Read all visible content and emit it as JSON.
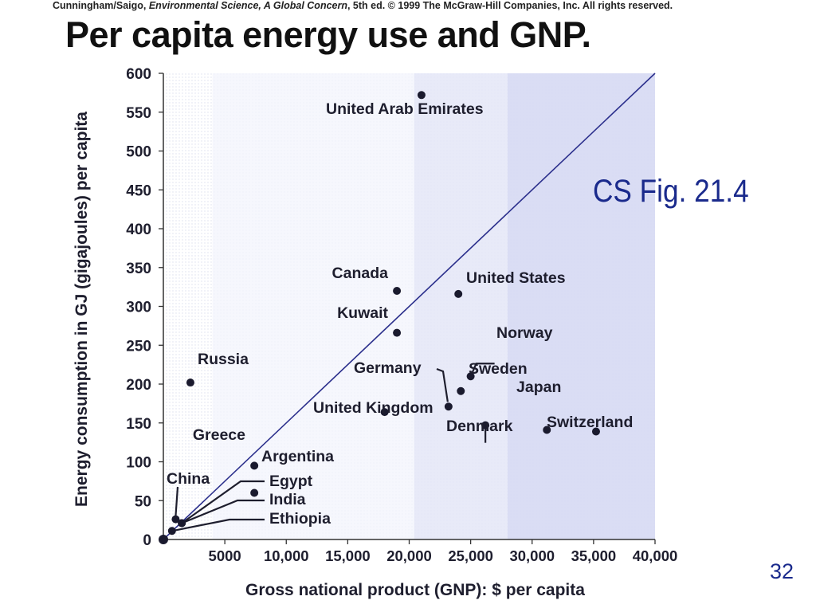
{
  "credit": {
    "prefix": "Cunningham/Saigo, ",
    "book": "Environmental Science, A Global Concern",
    "suffix": ", 5th ed. © 1999 The McGraw-Hill Companies, Inc. All rights reserved."
  },
  "figure_label": "CS Fig. 21.4",
  "slide_number": "32",
  "colors": {
    "line": "#2b2f8c",
    "points": "#1a1a2e",
    "band_light": "#f3f4fc",
    "band_mid": "#e4e6f7",
    "band_dark": "#d6d9f3"
  },
  "chart_data": {
    "type": "scatter",
    "title": "Per capita energy use and GNP.",
    "xlabel": "Gross national product (GNP): $ per capita",
    "ylabel": "Energy consumption in GJ (gigajoules) per capita",
    "xlim": [
      0,
      40000
    ],
    "ylim": [
      0,
      600
    ],
    "x_ticks": [
      5000,
      10000,
      15000,
      20000,
      25000,
      30000,
      35000,
      40000
    ],
    "x_tick_labels": [
      "5000",
      "10,000",
      "15,000",
      "20,000",
      "25,000",
      "30,000",
      "35,000",
      "40,000"
    ],
    "y_ticks": [
      0,
      50,
      100,
      150,
      200,
      250,
      300,
      350,
      400,
      450,
      500,
      550,
      600
    ],
    "y_tick_labels": [
      "0",
      "50",
      "100",
      "150",
      "200",
      "250",
      "300",
      "350",
      "400",
      "450",
      "500",
      "550",
      "600"
    ],
    "reference_line": {
      "x": [
        0,
        40000
      ],
      "y": [
        0,
        600
      ]
    },
    "points": [
      {
        "label": "United Arab Emirates",
        "x": 21000,
        "y": 572
      },
      {
        "label": "Canada",
        "x": 19000,
        "y": 320
      },
      {
        "label": "United States",
        "x": 24000,
        "y": 316
      },
      {
        "label": "Kuwait",
        "x": 19000,
        "y": 266
      },
      {
        "label": "Norway",
        "x": 25000,
        "y": 210
      },
      {
        "label": "Russia",
        "x": 2200,
        "y": 202
      },
      {
        "label": "Sweden",
        "x": 24200,
        "y": 191
      },
      {
        "label": "Germany",
        "x": 23200,
        "y": 171
      },
      {
        "label": "United Kingdom",
        "x": 18000,
        "y": 164
      },
      {
        "label": "Denmark",
        "x": 26200,
        "y": 147
      },
      {
        "label": "Japan",
        "x": 31200,
        "y": 141
      },
      {
        "label": "Switzerland",
        "x": 35200,
        "y": 139
      },
      {
        "label": "Greece",
        "x": 7400,
        "y": 95
      },
      {
        "label": "Argentina",
        "x": 7400,
        "y": 60
      },
      {
        "label": "China",
        "x": 1000,
        "y": 26
      },
      {
        "label": "Egypt",
        "x": 1500,
        "y": 21
      },
      {
        "label": "India",
        "x": 1500,
        "y": 21
      },
      {
        "label": "Ethiopia",
        "x": 700,
        "y": 11
      },
      {
        "label": "",
        "x": 0,
        "y": 0
      }
    ]
  }
}
